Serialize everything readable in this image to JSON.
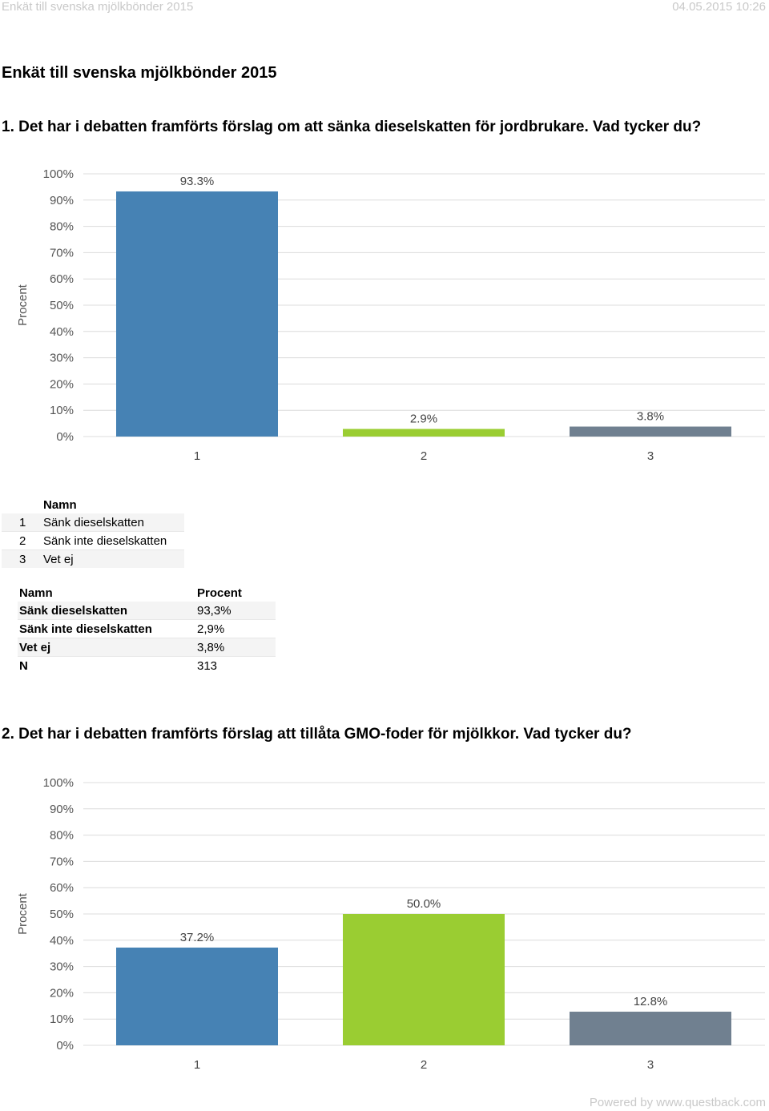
{
  "header": {
    "left": "Enkät till svenska mjölkbönder 2015",
    "right": "04.05.2015 10:26"
  },
  "survey_title": "Enkät till svenska mjölkbönder 2015",
  "questions": [
    {
      "title": "1. Det har i debatten framförts förslag om att sänka dieselskatten för jordbrukare. Vad tycker du?",
      "legend": {
        "header": "Namn",
        "rows": [
          {
            "num": "1",
            "name": "Sänk dieselskatten"
          },
          {
            "num": "2",
            "name": "Sänk inte dieselskatten"
          },
          {
            "num": "3",
            "name": "Vet ej"
          }
        ]
      },
      "table": {
        "headers": [
          "Namn",
          "Procent"
        ],
        "rows": [
          [
            "Sänk dieselskatten",
            "93,3%"
          ],
          [
            "Sänk inte dieselskatten",
            "2,9%"
          ],
          [
            "Vet ej",
            "3,8%"
          ],
          [
            "N",
            "313"
          ]
        ]
      }
    },
    {
      "title": "2. Det har i debatten framförts förslag att tillåta GMO-foder för mjölkkor. Vad tycker du?"
    }
  ],
  "chart_data": [
    {
      "type": "bar",
      "categories": [
        "1",
        "2",
        "3"
      ],
      "values": [
        93.3,
        2.9,
        3.8
      ],
      "value_labels": [
        "93.3%",
        "2.9%",
        "3.8%"
      ],
      "colors": [
        "#4682b4",
        "#9acd32",
        "#708090"
      ],
      "ylabel": "Procent",
      "yticks": [
        "0%",
        "10%",
        "20%",
        "30%",
        "40%",
        "50%",
        "60%",
        "70%",
        "80%",
        "90%",
        "100%"
      ],
      "ylim": [
        0,
        100
      ],
      "grid": true
    },
    {
      "type": "bar",
      "categories": [
        "1",
        "2",
        "3"
      ],
      "values": [
        37.2,
        50.0,
        12.8
      ],
      "value_labels": [
        "37.2%",
        "50.0%",
        "12.8%"
      ],
      "colors": [
        "#4682b4",
        "#9acd32",
        "#708090"
      ],
      "ylabel": "Procent",
      "yticks": [
        "0%",
        "10%",
        "20%",
        "30%",
        "40%",
        "50%",
        "60%",
        "70%",
        "80%",
        "90%",
        "100%"
      ],
      "ylim": [
        0,
        100
      ],
      "grid": true
    }
  ],
  "footer": "Powered by www.questback.com"
}
